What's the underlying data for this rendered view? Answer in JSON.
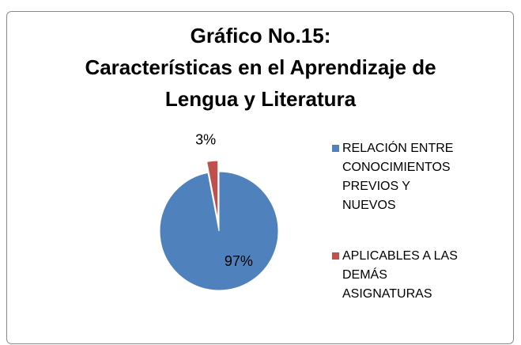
{
  "chart_data": {
    "type": "pie",
    "title": [
      "Gráfico No.15:",
      "Características en el Aprendizaje de",
      "Lengua y Literatura"
    ],
    "categories": [
      "RELACIÓN ENTRE CONOCIMIENTOS PREVIOS Y NUEVOS",
      "APLICABLES A LAS DEMÁS ASIGNATURAS"
    ],
    "values": [
      97,
      3
    ],
    "value_labels": [
      "97%",
      "3%"
    ],
    "colors": [
      "#4f81bd",
      "#c0504d"
    ],
    "legend": "right"
  }
}
